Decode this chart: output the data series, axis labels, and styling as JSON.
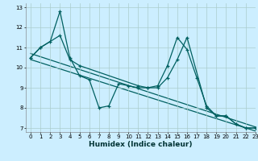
{
  "title": "",
  "xlabel": "Humidex (Indice chaleur)",
  "bg_color": "#cceeff",
  "grid_color": "#aacccc",
  "line_color": "#006060",
  "xlim": [
    -0.5,
    23
  ],
  "ylim": [
    6.8,
    13.2
  ],
  "yticks": [
    7,
    8,
    9,
    10,
    11,
    12,
    13
  ],
  "xticks": [
    0,
    1,
    2,
    3,
    4,
    5,
    6,
    7,
    8,
    9,
    10,
    11,
    12,
    13,
    14,
    15,
    16,
    17,
    18,
    19,
    20,
    21,
    22,
    23
  ],
  "series1_x": [
    0,
    1,
    2,
    3,
    4,
    5,
    6,
    7,
    8,
    9,
    10,
    11,
    12,
    13,
    14,
    15,
    16,
    17,
    18,
    19,
    20,
    21,
    22,
    23
  ],
  "series1_y": [
    10.5,
    11.0,
    11.3,
    12.8,
    10.5,
    9.6,
    9.4,
    8.0,
    8.1,
    9.2,
    9.1,
    9.0,
    9.0,
    9.1,
    10.1,
    11.5,
    10.9,
    9.5,
    8.1,
    7.6,
    7.6,
    7.2,
    7.0,
    7.0
  ],
  "series2_x": [
    0,
    1,
    3,
    4,
    5,
    11,
    12,
    13,
    14,
    15,
    16,
    18,
    19,
    20,
    21,
    22,
    23
  ],
  "series2_y": [
    10.5,
    11.0,
    11.6,
    10.4,
    10.1,
    9.1,
    9.0,
    9.0,
    9.5,
    10.4,
    11.5,
    8.0,
    7.6,
    7.6,
    7.2,
    7.0,
    7.0
  ],
  "series3_x": [
    0,
    23
  ],
  "series3_y": [
    10.7,
    7.05
  ],
  "series4_x": [
    0,
    23
  ],
  "series4_y": [
    10.4,
    6.85
  ]
}
